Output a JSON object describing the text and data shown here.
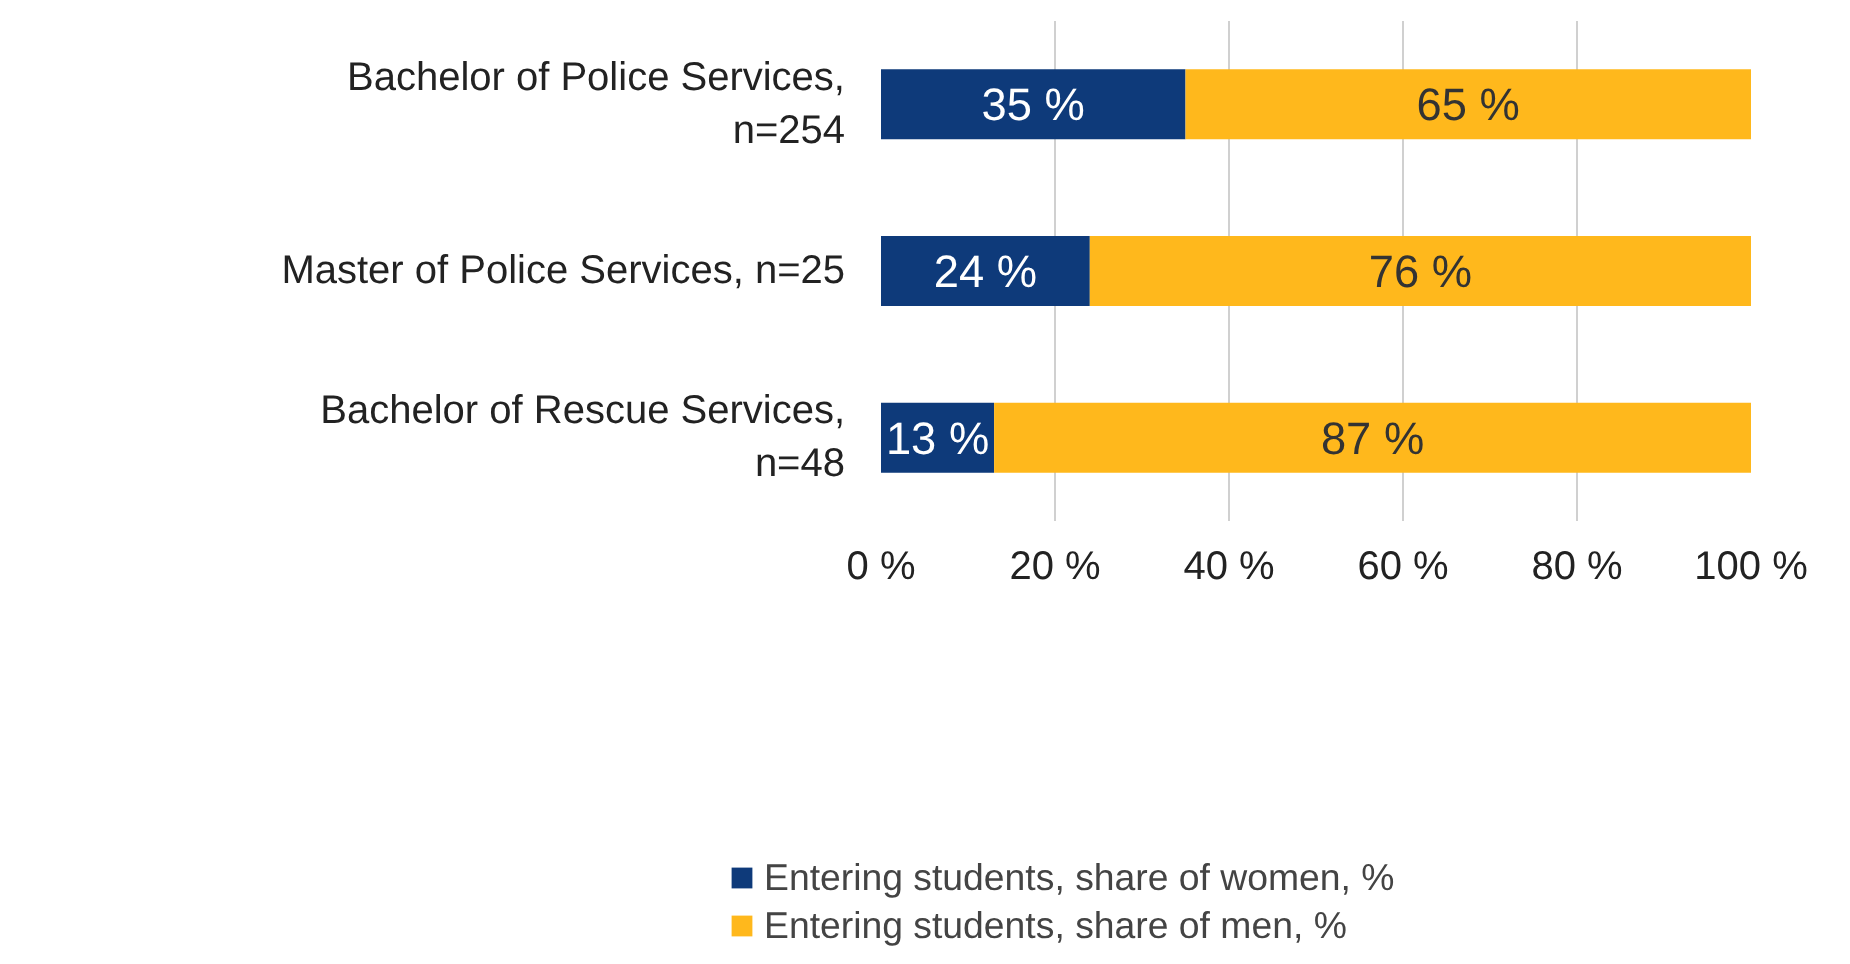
{
  "chart_data": {
    "type": "bar",
    "orientation": "horizontal",
    "stacked": true,
    "categories": [
      "Bachelor of Police Services, n=254",
      "Master of Police Services, n=25",
      "Bachelor of Rescue Services, n=48"
    ],
    "series": [
      {
        "name": "Entering students, share of women, %",
        "color": "#0e3a7a",
        "values": [
          35,
          24,
          13
        ],
        "value_labels": [
          "35 %",
          "24 %",
          "13 %"
        ]
      },
      {
        "name": "Entering students, share of men, %",
        "color": "#ffb81c",
        "values": [
          65,
          76,
          87
        ],
        "value_labels": [
          "65 %",
          "76 %",
          "87 %"
        ]
      }
    ],
    "xlim": [
      0,
      100
    ],
    "xticks": [
      {
        "value": 0,
        "label": "0 %"
      },
      {
        "value": 20,
        "label": "20 %"
      },
      {
        "value": 40,
        "label": "40 %"
      },
      {
        "value": 60,
        "label": "60 %"
      },
      {
        "value": 80,
        "label": "80 %"
      },
      {
        "value": 100,
        "label": "100 %"
      }
    ],
    "grid": "x",
    "legend": "bottom"
  }
}
